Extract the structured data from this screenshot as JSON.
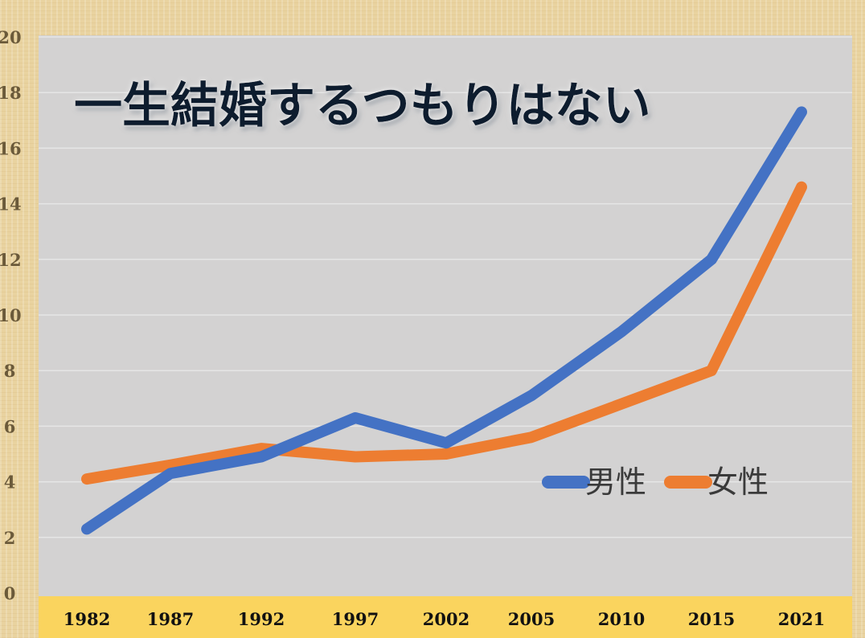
{
  "chart_data": {
    "type": "line",
    "title": "一生結婚するつもりはない",
    "categories": [
      "1982",
      "1987",
      "1992",
      "1997",
      "2002",
      "2005",
      "2010",
      "2015",
      "2021"
    ],
    "series": [
      {
        "name": "男性",
        "color": "#4472c4",
        "values": [
          2.3,
          4.3,
          4.9,
          6.3,
          5.4,
          7.1,
          9.4,
          12.0,
          17.3
        ]
      },
      {
        "name": "女性",
        "color": "#ed7d31",
        "values": [
          4.1,
          4.6,
          5.2,
          4.9,
          5.0,
          5.6,
          6.8,
          8.0,
          14.6
        ]
      }
    ],
    "ylim": [
      0,
      20
    ],
    "yticks": [
      0,
      2,
      4,
      6,
      8,
      10,
      12,
      14,
      16,
      18,
      20
    ],
    "grid": true,
    "legend_position": "bottom-right",
    "plot_background": "#d3d2d2",
    "axis_band_color": "#fad45e"
  }
}
